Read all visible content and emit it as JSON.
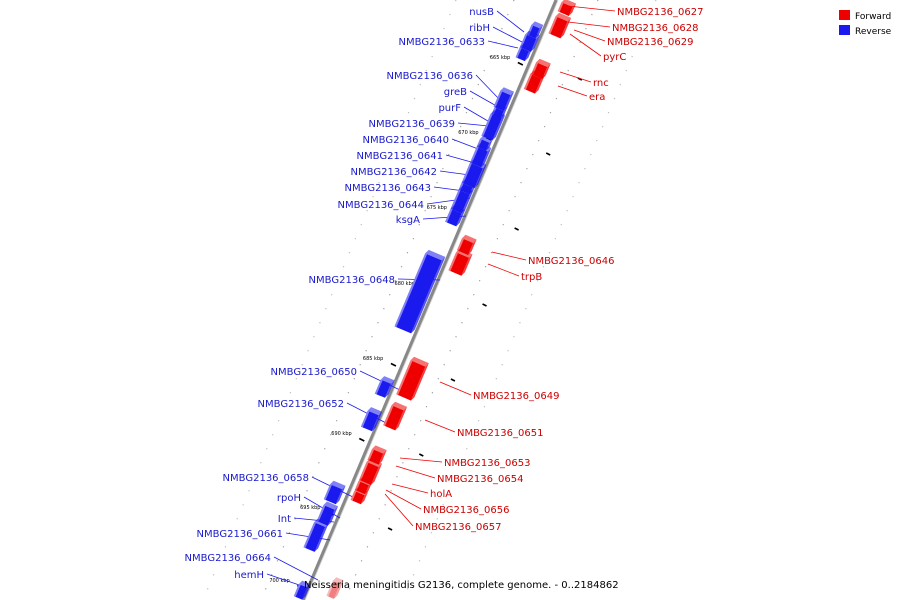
{
  "legend": [
    {
      "label": "Forward",
      "color": "#ee0000"
    },
    {
      "label": "Reverse",
      "color": "#1a1aee"
    }
  ],
  "caption": "Neisseria meningitidis G2136, complete genome. - 0..2184862",
  "colors": {
    "forward": "#ee0000",
    "reverse": "#1a1aee",
    "backbone": "#888888"
  },
  "scale_marks": [
    "665 kbp",
    "670 kbp",
    "675 kbp",
    "680 kbp",
    "685 kbp",
    "690 kbp",
    "695 kbp",
    "700 kbp"
  ],
  "forward_genes": [
    {
      "label": "NMBG2136_0627"
    },
    {
      "label": "NMBG2136_0628"
    },
    {
      "label": "NMBG2136_0629"
    },
    {
      "label": "pyrC"
    },
    {
      "label": "rnc"
    },
    {
      "label": "era"
    },
    {
      "label": "NMBG2136_0646"
    },
    {
      "label": "trpB"
    },
    {
      "label": "NMBG2136_0649"
    },
    {
      "label": "NMBG2136_0651"
    },
    {
      "label": "NMBG2136_0653"
    },
    {
      "label": "NMBG2136_0654"
    },
    {
      "label": "holA"
    },
    {
      "label": "NMBG2136_0656"
    },
    {
      "label": "NMBG2136_0657"
    }
  ],
  "reverse_genes": [
    {
      "label": "nusB"
    },
    {
      "label": "ribH"
    },
    {
      "label": "NMBG2136_0633"
    },
    {
      "label": "NMBG2136_0636"
    },
    {
      "label": "greB"
    },
    {
      "label": "purF"
    },
    {
      "label": "NMBG2136_0639"
    },
    {
      "label": "NMBG2136_0640"
    },
    {
      "label": "NMBG2136_0641"
    },
    {
      "label": "NMBG2136_0642"
    },
    {
      "label": "NMBG2136_0643"
    },
    {
      "label": "NMBG2136_0644"
    },
    {
      "label": "ksgA"
    },
    {
      "label": "NMBG2136_0648"
    },
    {
      "label": "NMBG2136_0650"
    },
    {
      "label": "NMBG2136_0652"
    },
    {
      "label": "NMBG2136_0658"
    },
    {
      "label": "rpoH"
    },
    {
      "label": "Int"
    },
    {
      "label": "NMBG2136_0661"
    },
    {
      "label": "NMBG2136_0664"
    },
    {
      "label": "hemH"
    }
  ]
}
